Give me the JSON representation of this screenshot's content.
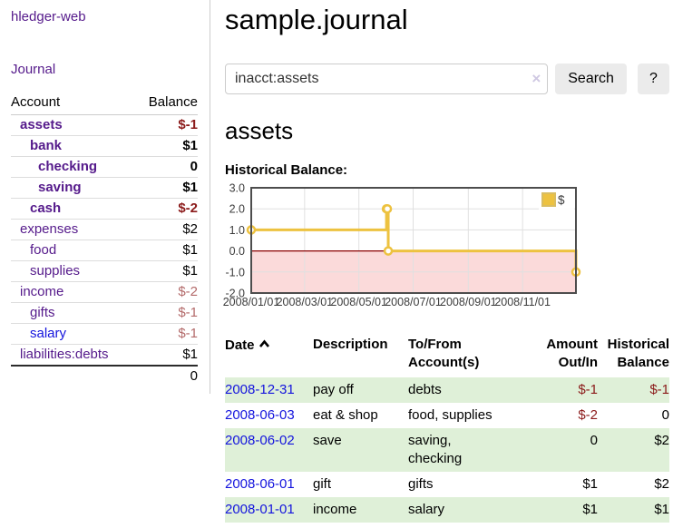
{
  "app": {
    "brand": "hledger-web"
  },
  "sidebar": {
    "nav_journal": "Journal",
    "accounts_table": {
      "headers": {
        "account": "Account",
        "balance": "Balance"
      },
      "rows": [
        {
          "name": "assets",
          "balance": "$-1"
        },
        {
          "name": "bank",
          "balance": "$1"
        },
        {
          "name": "checking",
          "balance": "0"
        },
        {
          "name": "saving",
          "balance": "$1"
        },
        {
          "name": "cash",
          "balance": "$-2"
        },
        {
          "name": "expenses",
          "balance": "$2"
        },
        {
          "name": "food",
          "balance": "$1"
        },
        {
          "name": "supplies",
          "balance": "$1"
        },
        {
          "name": "income",
          "balance": "$-2"
        },
        {
          "name": "gifts",
          "balance": "$-1"
        },
        {
          "name": "salary",
          "balance": "$-1"
        },
        {
          "name": "liabilities:debts",
          "balance": "$1"
        }
      ],
      "total": "0"
    }
  },
  "header": {
    "title": "sample.journal"
  },
  "search": {
    "value": "inacct:assets",
    "clear_icon": "×",
    "button": "Search",
    "help_button": "?"
  },
  "register": {
    "heading": "assets",
    "chart_label": "Historical Balance:",
    "table": {
      "headers": [
        "Date",
        "Description",
        "To/From Account(s)",
        "Amount Out/In",
        "Historical Balance"
      ],
      "rows": [
        {
          "date": "2008-12-31",
          "description": "pay off",
          "accounts": "debts",
          "amount": "$-1",
          "balance": "$-1"
        },
        {
          "date": "2008-06-03",
          "description": "eat & shop",
          "accounts": "food, supplies",
          "amount": "$-2",
          "balance": "0"
        },
        {
          "date": "2008-06-02",
          "description": "save",
          "accounts": "saving, checking",
          "amount": "0",
          "balance": "$2"
        },
        {
          "date": "2008-06-01",
          "description": "gift",
          "accounts": "gifts",
          "amount": "$1",
          "balance": "$2"
        },
        {
          "date": "2008-01-01",
          "description": "income",
          "accounts": "salary",
          "amount": "$1",
          "balance": "$1"
        }
      ]
    }
  },
  "chart_data": {
    "type": "line",
    "step": true,
    "title": "Historical Balance:",
    "x": [
      "2008-01-01",
      "2008-06-01",
      "2008-06-02",
      "2008-06-03",
      "2008-12-31"
    ],
    "values": [
      1,
      2,
      2,
      0,
      -1
    ],
    "xrange": [
      "2008-01-01",
      "2008-12-31"
    ],
    "ylim": [
      -2,
      3
    ],
    "yticks": [
      "3.0",
      "2.0",
      "1.0",
      "0.0",
      "-1.0",
      "-2.0"
    ],
    "xticks": [
      "2008/01/01",
      "2008/03/01",
      "2008/05/01",
      "2008/07/01",
      "2008/09/01",
      "2008/11/01"
    ],
    "legend": [
      {
        "label": "$",
        "color": "#edc240"
      }
    ],
    "legend_position": "top-right",
    "grid": true,
    "series_color": "#edc240",
    "negative_region": {
      "fill": "#fbdada",
      "line": "#8b0000"
    }
  },
  "colors": {
    "link_purple": "#551a8b",
    "link_blue": "#1414dd",
    "negative_dark": "#8b1a1a",
    "negative_light": "#b36a6a",
    "row_green": "#dff0d8",
    "series_yellow": "#edc240",
    "negative_fill": "#fbdada"
  }
}
